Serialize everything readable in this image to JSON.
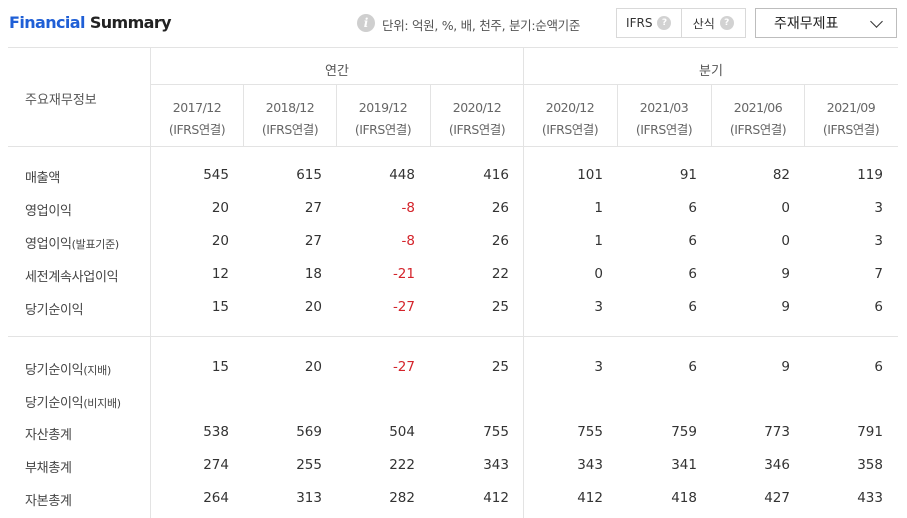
{
  "title": {
    "part1": "Financial",
    "part2": "Summary"
  },
  "unit_info": {
    "icon": "i",
    "text": "단위: 억원, %, 배, 천주, 분기:순액기준"
  },
  "toggle": {
    "ifrs_label": "IFRS",
    "calc_label": "산식",
    "help_icon": "?"
  },
  "statement_select": {
    "value": "주재무제표"
  },
  "table": {
    "header_label": "주요재무정보",
    "group_annual": "연간",
    "group_quarter": "분기",
    "columns": [
      {
        "period": "2017/12",
        "basis": "(IFRS연결)"
      },
      {
        "period": "2018/12",
        "basis": "(IFRS연결)"
      },
      {
        "period": "2019/12",
        "basis": "(IFRS연결)"
      },
      {
        "period": "2020/12",
        "basis": "(IFRS연결)"
      },
      {
        "period": "2020/12",
        "basis": "(IFRS연결)"
      },
      {
        "period": "2021/03",
        "basis": "(IFRS연결)"
      },
      {
        "period": "2021/06",
        "basis": "(IFRS연결)"
      },
      {
        "period": "2021/09",
        "basis": "(IFRS연결)"
      }
    ],
    "rows": [
      {
        "label": "매출액",
        "paren": "",
        "values": [
          "545",
          "615",
          "448",
          "416",
          "101",
          "91",
          "82",
          "119"
        ]
      },
      {
        "label": "영업이익",
        "paren": "",
        "values": [
          "20",
          "27",
          "-8",
          "26",
          "1",
          "6",
          "0",
          "3"
        ]
      },
      {
        "label": "영업이익",
        "paren": "(발표기준)",
        "values": [
          "20",
          "27",
          "-8",
          "26",
          "1",
          "6",
          "0",
          "3"
        ]
      },
      {
        "label": "세전계속사업이익",
        "paren": "",
        "values": [
          "12",
          "18",
          "-21",
          "22",
          "0",
          "6",
          "9",
          "7"
        ]
      },
      {
        "label": "당기순이익",
        "paren": "",
        "values": [
          "15",
          "20",
          "-27",
          "25",
          "3",
          "6",
          "9",
          "6"
        ]
      },
      {
        "label": "당기순이익",
        "paren": "(지배)",
        "values": [
          "15",
          "20",
          "-27",
          "25",
          "3",
          "6",
          "9",
          "6"
        ]
      },
      {
        "label": "당기순이익",
        "paren": "(비지배)",
        "values": [
          "",
          "",
          "",
          "",
          "",
          "",
          "",
          ""
        ]
      },
      {
        "label": "자산총계",
        "paren": "",
        "values": [
          "538",
          "569",
          "504",
          "755",
          "755",
          "759",
          "773",
          "791"
        ]
      },
      {
        "label": "부채총계",
        "paren": "",
        "values": [
          "274",
          "255",
          "222",
          "343",
          "343",
          "341",
          "346",
          "358"
        ]
      },
      {
        "label": "자본총계",
        "paren": "",
        "values": [
          "264",
          "313",
          "282",
          "412",
          "412",
          "418",
          "427",
          "433"
        ]
      }
    ]
  },
  "colors": {
    "brand_blue": "#1f5fd6",
    "negative_red": "#d4242b",
    "border": "#e3e3e3"
  }
}
